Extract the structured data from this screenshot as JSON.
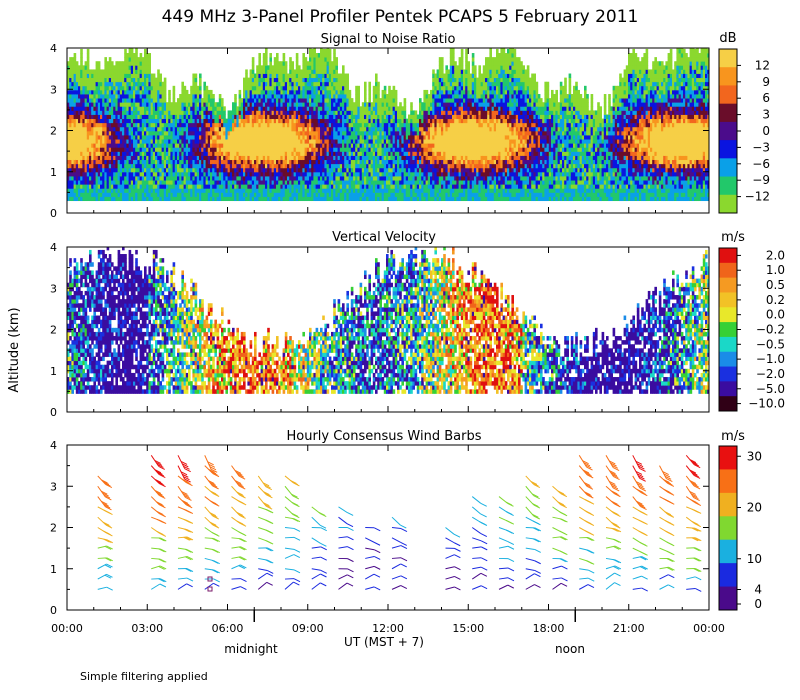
{
  "title": "449 MHz 3-Panel Profiler Pentek PCAPS  5 February 2011",
  "ylabel": "Altitude (km)",
  "footnote": "Simple filtering applied",
  "xaxis": {
    "label": "UT  (MST + 7)",
    "ticks": [
      "00:00",
      "03:00",
      "06:00",
      "09:00",
      "12:00",
      "15:00",
      "18:00",
      "21:00",
      "00:00"
    ],
    "hour_values": [
      0,
      3,
      6,
      9,
      12,
      15,
      18,
      21,
      24
    ],
    "markers": [
      {
        "label": "midnight",
        "hour": 7
      },
      {
        "label": "noon",
        "hour": 19
      }
    ]
  },
  "chart_data": [
    {
      "type": "heatmap",
      "title": "Signal to Noise Ratio",
      "x_unit": "hour UT",
      "y_unit": "km",
      "xlim": [
        0,
        24
      ],
      "ylim": [
        0,
        4
      ],
      "yticks": [
        0,
        1,
        2,
        3,
        4
      ],
      "colorbar": {
        "unit": "dB",
        "labels": [
          "12",
          "9",
          "6",
          "3",
          "0",
          "−3",
          "−6",
          "−9",
          "−12"
        ],
        "colors": [
          "#f6cf46",
          "#f8951e",
          "#f2661e",
          "#6a0d2a",
          "#4b0c8b",
          "#0a14e0",
          "#0aa0e8",
          "#22c86a",
          "#8bd82e"
        ]
      },
      "description_values": {
        "typical_top_km": 3.6,
        "high_snr_core_km": [
          1.2,
          2.8
        ],
        "max_dB": 12,
        "min_dB": -12
      }
    },
    {
      "type": "heatmap",
      "title": "Vertical Velocity",
      "x_unit": "hour UT",
      "y_unit": "km",
      "xlim": [
        0,
        24
      ],
      "ylim": [
        0,
        4
      ],
      "yticks": [
        0,
        1,
        2,
        3,
        4
      ],
      "colorbar": {
        "unit": "m/s",
        "labels": [
          "2.0",
          "1.0",
          "0.5",
          "0.2",
          "0.0",
          "−0.2",
          "−0.5",
          "−1.0",
          "−2.0",
          "−5.0",
          "−10.0"
        ],
        "colors": [
          "#e01010",
          "#f0641a",
          "#f59a22",
          "#f2c226",
          "#e8e82a",
          "#36d036",
          "#1ad8c8",
          "#1a8ce8",
          "#1a30e0",
          "#3a0ca0",
          "#300016"
        ]
      }
    },
    {
      "type": "wind_barbs",
      "title": "Hourly Consensus Wind Barbs",
      "x_unit": "hour UT",
      "y_unit": "km",
      "xlim": [
        0,
        24
      ],
      "ylim": [
        0,
        4
      ],
      "yticks": [
        0,
        1,
        2,
        3,
        4
      ],
      "colorbar": {
        "unit": "m/s",
        "labels": [
          "30",
          "20",
          "10",
          "4",
          "0"
        ],
        "label_values": [
          30,
          20,
          10,
          4,
          0
        ],
        "colors": [
          "#e81010",
          "#f87016",
          "#f0b020",
          "#80d830",
          "#1ab0e0",
          "#1a2ae0",
          "#4a0a8a"
        ]
      }
    }
  ]
}
